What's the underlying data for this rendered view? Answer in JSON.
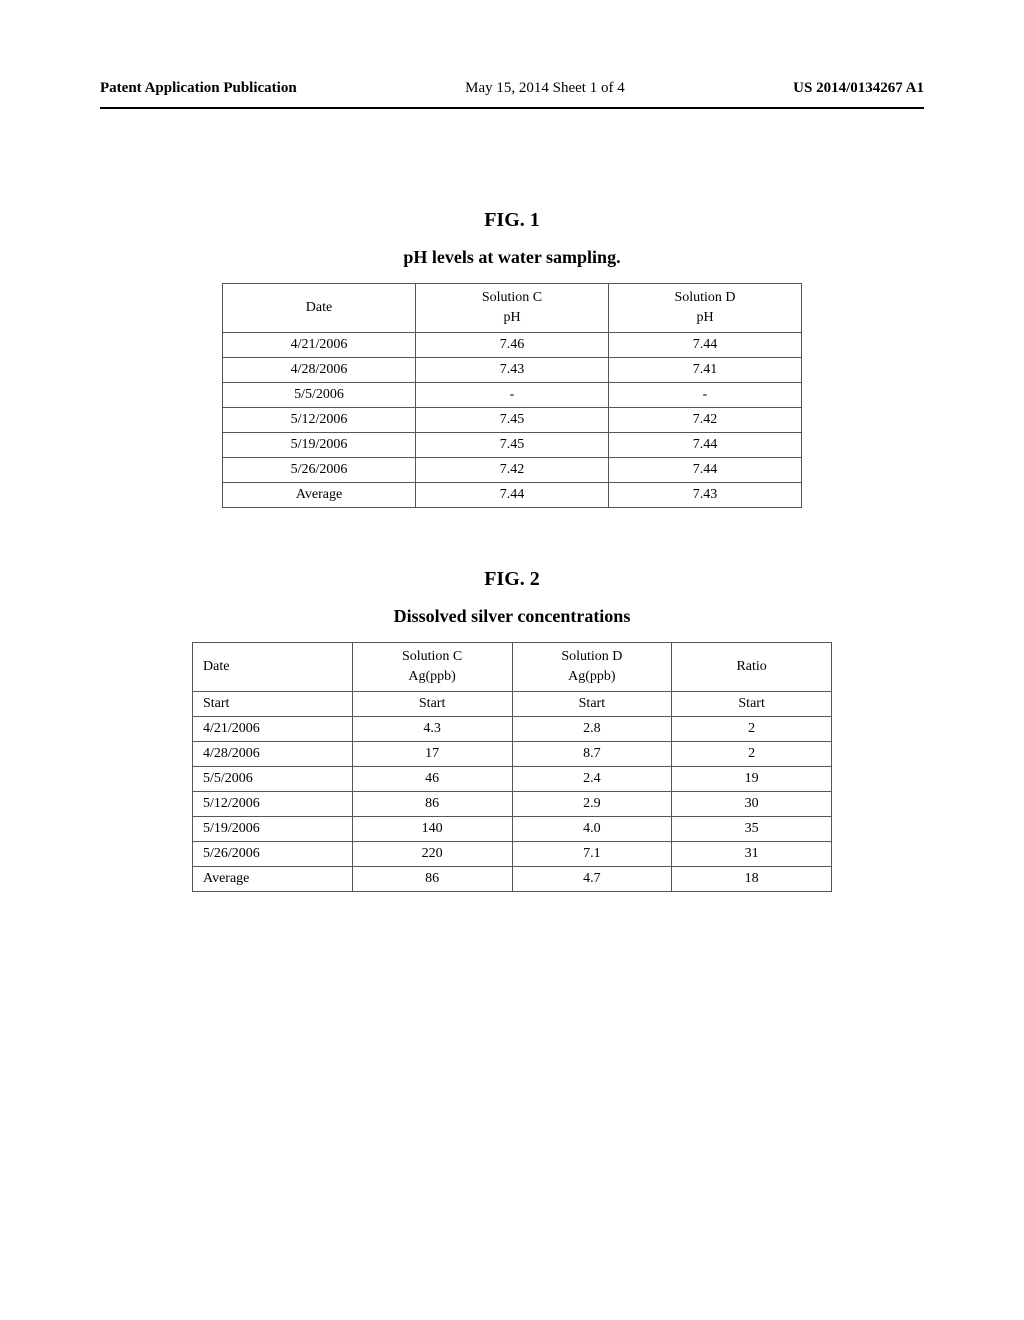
{
  "header": {
    "left": "Patent Application Publication",
    "center": "May 15, 2014  Sheet 1 of 4",
    "right": "US 2014/0134267 A1"
  },
  "figures": [
    {
      "label": "FIG. 1",
      "title": "pH levels at water sampling.",
      "table_class": "t1",
      "columns": [
        {
          "line1": "Date",
          "line2": ""
        },
        {
          "line1": "Solution C",
          "line2": "pH"
        },
        {
          "line1": "Solution D",
          "line2": "pH"
        }
      ],
      "rows": [
        [
          "4/21/2006",
          "7.46",
          "7.44"
        ],
        [
          "4/28/2006",
          "7.43",
          "7.41"
        ],
        [
          "5/5/2006",
          "-",
          "-"
        ],
        [
          "5/12/2006",
          "7.45",
          "7.42"
        ],
        [
          "5/19/2006",
          "7.45",
          "7.44"
        ],
        [
          "5/26/2006",
          "7.42",
          "7.44"
        ],
        [
          "Average",
          "7.44",
          "7.43"
        ]
      ]
    },
    {
      "label": "FIG. 2",
      "title": "Dissolved silver concentrations",
      "table_class": "t2",
      "columns": [
        {
          "line1": "Date",
          "line2": ""
        },
        {
          "line1": "Solution C",
          "line2": "Ag(ppb)"
        },
        {
          "line1": "Solution D",
          "line2": "Ag(ppb)"
        },
        {
          "line1": "Ratio",
          "line2": ""
        }
      ],
      "rows": [
        [
          "Start",
          "Start",
          "Start",
          "Start"
        ],
        [
          "4/21/2006",
          "4.3",
          "2.8",
          "2"
        ],
        [
          "4/28/2006",
          "17",
          "8.7",
          "2"
        ],
        [
          "5/5/2006",
          "46",
          "2.4",
          "19"
        ],
        [
          "5/12/2006",
          "86",
          "2.9",
          "30"
        ],
        [
          "5/19/2006",
          "140",
          "4.0",
          "35"
        ],
        [
          "5/26/2006",
          "220",
          "7.1",
          "31"
        ],
        [
          "Average",
          "86",
          "4.7",
          "18"
        ]
      ]
    }
  ]
}
